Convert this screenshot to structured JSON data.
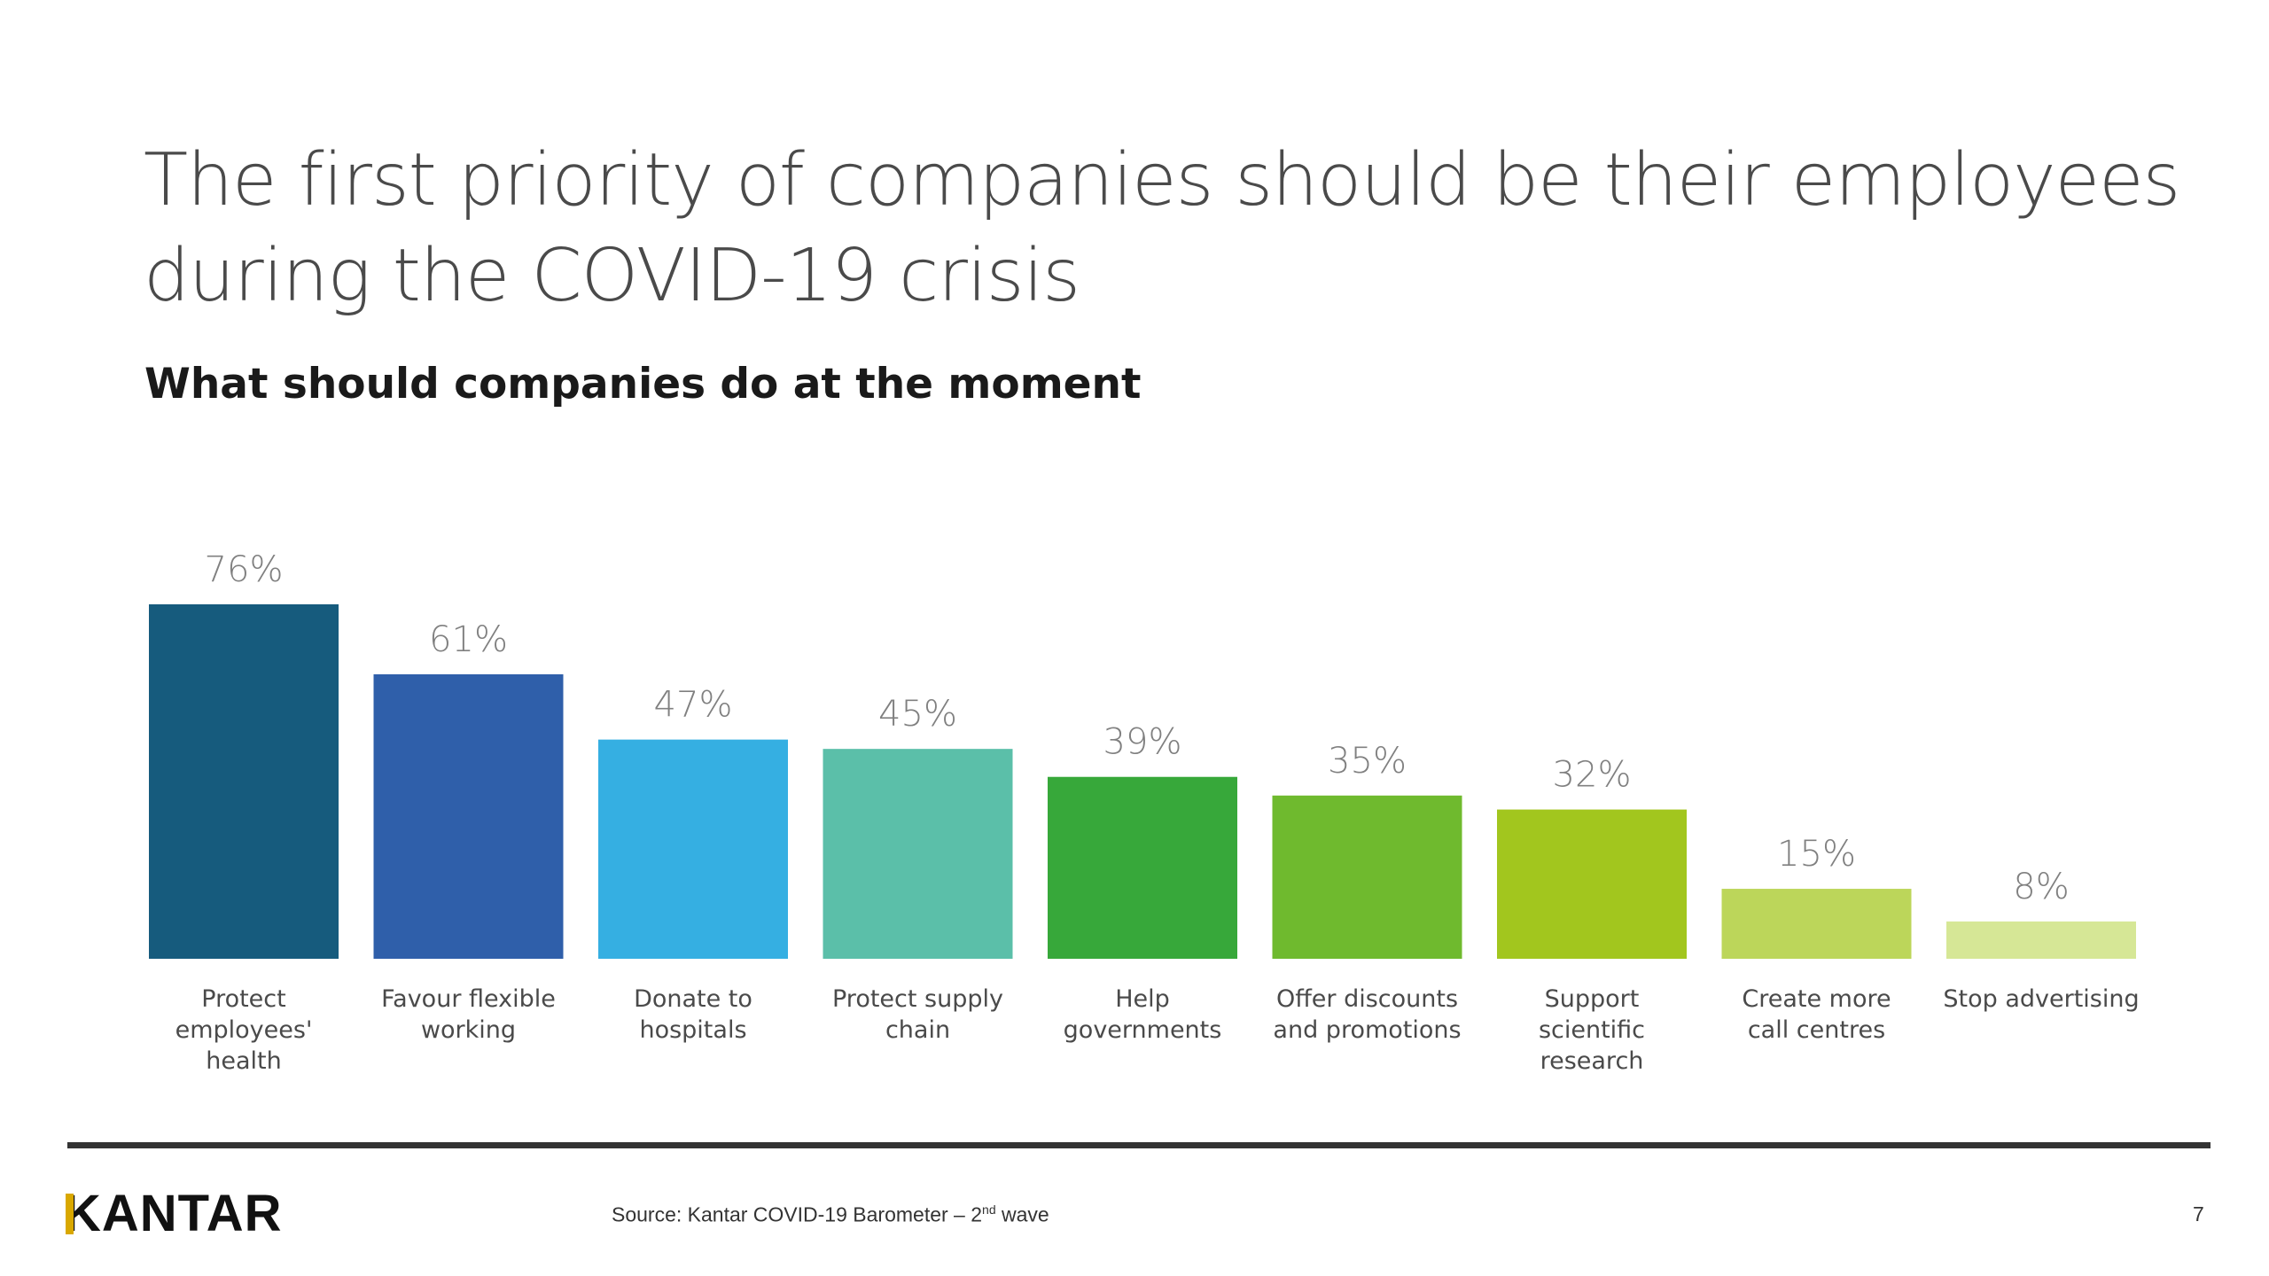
{
  "slide": {
    "title_line1": "The first priority of companies should be their employees",
    "title_line2": "during the COVID-19 crisis",
    "subtitle": "What should companies do at the moment"
  },
  "chart_data": {
    "type": "bar",
    "categories": [
      [
        "Protect",
        "employees'",
        "health"
      ],
      [
        "Favour flexible",
        "working"
      ],
      [
        "Donate to",
        "hospitals"
      ],
      [
        "Protect supply",
        "chain"
      ],
      [
        "Help",
        "governments"
      ],
      [
        "Offer discounts",
        "and promotions"
      ],
      [
        "Support",
        "scientific",
        "research"
      ],
      [
        "Create more",
        "call centres"
      ],
      [
        "Stop advertising"
      ]
    ],
    "values": [
      76,
      61,
      47,
      45,
      39,
      35,
      32,
      15,
      8
    ],
    "value_labels": [
      "76%",
      "61%",
      "47%",
      "45%",
      "39%",
      "35%",
      "32%",
      "15%",
      "8%"
    ],
    "colors": [
      "#165b7d",
      "#2f5faa",
      "#35afe2",
      "#5bbfa9",
      "#37a83a",
      "#6fba2e",
      "#a2c61e",
      "#bcd65a",
      "#d6e796"
    ],
    "ylim": [
      0,
      76
    ],
    "grid": false,
    "legend": "none"
  },
  "footer": {
    "logo": "KANTAR",
    "source_prefix": "Source: Kantar COVID-19 Barometer – 2",
    "source_sup": "nd",
    "source_suffix": " wave",
    "page_number": "7"
  }
}
